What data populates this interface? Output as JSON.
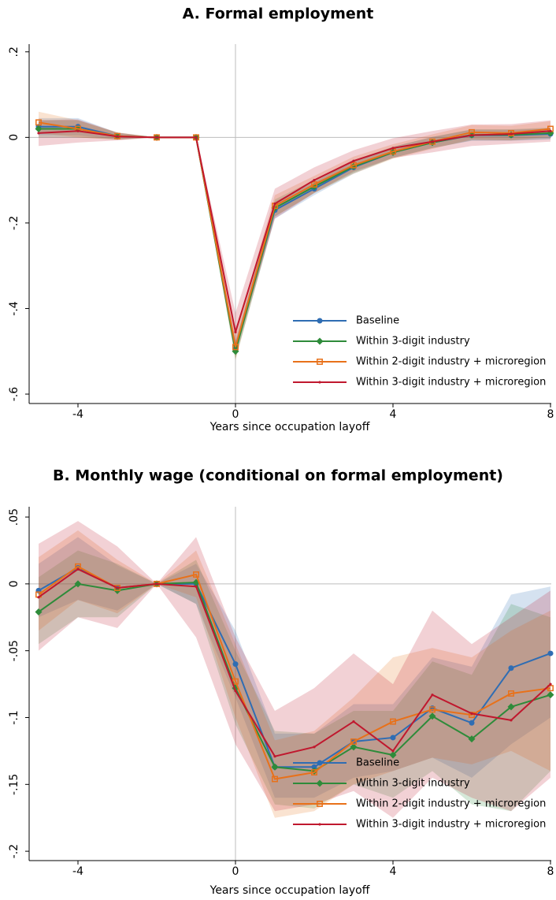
{
  "chart_data": [
    {
      "type": "line",
      "title": "A. Formal employment",
      "x_label": "Years since occupation layoff",
      "x": [
        -5,
        -4,
        -3,
        -2,
        -1,
        0,
        1,
        2,
        3,
        4,
        5,
        6,
        7,
        8
      ],
      "xlim": [
        -5.24,
        8.02
      ],
      "xticks": [
        -4,
        0,
        4,
        8
      ],
      "ylim": [
        -0.622,
        0.218
      ],
      "yticks": [
        {
          "value": -0.6,
          "label": "-.6"
        },
        {
          "value": -0.4,
          "label": "-.4"
        },
        {
          "value": -0.2,
          "label": "-.2"
        },
        0,
        {
          "value": 0.2,
          "label": ".2"
        }
      ],
      "legend": "lower right",
      "series": [
        {
          "name": "Baseline",
          "color": "#2f6db3",
          "marker": "circle",
          "values": [
            0.025,
            0.025,
            0.003,
            0,
            0,
            -0.495,
            -0.17,
            -0.12,
            -0.07,
            -0.035,
            -0.012,
            0.005,
            0.005,
            0.008
          ],
          "lower": [
            0.005,
            0.005,
            -0.005,
            0,
            0,
            -0.515,
            -0.19,
            -0.135,
            -0.085,
            -0.048,
            -0.025,
            -0.008,
            -0.008,
            -0.005
          ],
          "upper": [
            0.045,
            0.045,
            0.011,
            0,
            0,
            -0.475,
            -0.15,
            -0.105,
            -0.055,
            -0.022,
            0.001,
            0.018,
            0.018,
            0.021
          ]
        },
        {
          "name": "Within 3-digit industry",
          "color": "#2e8b3a",
          "marker": "diamond",
          "values": [
            0.02,
            0.02,
            0.003,
            0,
            0,
            -0.5,
            -0.165,
            -0.115,
            -0.068,
            -0.035,
            -0.012,
            0.006,
            0.006,
            0.01
          ],
          "lower": [
            0,
            0,
            -0.005,
            0,
            0,
            -0.52,
            -0.185,
            -0.13,
            -0.083,
            -0.048,
            -0.025,
            -0.007,
            -0.007,
            -0.003
          ],
          "upper": [
            0.04,
            0.04,
            0.011,
            0,
            0,
            -0.48,
            -0.145,
            -0.1,
            -0.053,
            -0.022,
            0.001,
            0.019,
            0.019,
            0.023
          ]
        },
        {
          "name": "Within 2-digit industry + microregion",
          "color": "#e8711a",
          "marker": "square",
          "values": [
            0.035,
            0.02,
            0.003,
            0,
            0,
            -0.49,
            -0.16,
            -0.11,
            -0.065,
            -0.033,
            -0.01,
            0.012,
            0.01,
            0.02
          ],
          "lower": [
            0.01,
            0,
            -0.006,
            0,
            0,
            -0.52,
            -0.185,
            -0.13,
            -0.085,
            -0.05,
            -0.027,
            -0.005,
            -0.007,
            0.002
          ],
          "upper": [
            0.06,
            0.04,
            0.012,
            0,
            0,
            -0.46,
            -0.135,
            -0.09,
            -0.045,
            -0.016,
            0.007,
            0.029,
            0.027,
            0.038
          ]
        },
        {
          "name": "Within 3-digit industry + microregion",
          "color": "#c0182e",
          "marker": "dot",
          "values": [
            0.01,
            0.015,
            0.002,
            0,
            0,
            -0.455,
            -0.155,
            -0.1,
            -0.055,
            -0.025,
            -0.01,
            0.005,
            0.008,
            0.015
          ],
          "lower": [
            -0.02,
            -0.012,
            -0.007,
            0,
            0,
            -0.5,
            -0.19,
            -0.13,
            -0.08,
            -0.048,
            -0.035,
            -0.02,
            -0.015,
            -0.01
          ],
          "upper": [
            0.04,
            0.042,
            0.011,
            0,
            0,
            -0.41,
            -0.12,
            -0.07,
            -0.03,
            -0.002,
            0.015,
            0.03,
            0.031,
            0.04
          ]
        }
      ]
    },
    {
      "type": "line",
      "title": "B. Monthly wage (conditional on formal employment)",
      "x_label": "Years since occupation layoff",
      "x": [
        -5,
        -4,
        -3,
        -2,
        -1,
        0,
        1,
        2,
        3,
        4,
        5,
        6,
        7,
        8
      ],
      "xlim": [
        -5.24,
        8.02
      ],
      "xticks": [
        -4,
        0,
        4,
        8
      ],
      "ylim": [
        -0.207,
        0.0577
      ],
      "yticks": [
        {
          "value": -0.2,
          "label": "-.2"
        },
        {
          "value": -0.15,
          "label": "-.15"
        },
        {
          "value": -0.1,
          "label": "-.1"
        },
        {
          "value": -0.05,
          "label": "-.05"
        },
        0,
        {
          "value": 0.05,
          "label": ".05"
        }
      ],
      "legend": "lower right",
      "series": [
        {
          "name": "Baseline",
          "color": "#2f6db3",
          "marker": "circle",
          "values": [
            -0.005,
            0.012,
            -0.003,
            0,
            0,
            -0.06,
            -0.137,
            -0.137,
            -0.118,
            -0.115,
            -0.093,
            -0.104,
            -0.063,
            -0.052
          ],
          "lower": [
            -0.025,
            -0.012,
            -0.02,
            0,
            -0.015,
            -0.085,
            -0.16,
            -0.16,
            -0.145,
            -0.14,
            -0.13,
            -0.145,
            -0.12,
            -0.1
          ],
          "upper": [
            0.015,
            0.035,
            0.014,
            0,
            0.015,
            -0.035,
            -0.112,
            -0.112,
            -0.09,
            -0.09,
            -0.055,
            -0.062,
            -0.008,
            -0.002
          ]
        },
        {
          "name": "Within 3-digit industry",
          "color": "#2e8b3a",
          "marker": "diamond",
          "values": [
            -0.021,
            0,
            -0.005,
            0,
            0.001,
            -0.078,
            -0.137,
            -0.14,
            -0.122,
            -0.128,
            -0.099,
            -0.116,
            -0.092,
            -0.083
          ],
          "lower": [
            -0.045,
            -0.025,
            -0.025,
            0,
            -0.015,
            -0.105,
            -0.165,
            -0.168,
            -0.15,
            -0.16,
            -0.14,
            -0.165,
            -0.17,
            -0.14
          ],
          "upper": [
            0.005,
            0.025,
            0.015,
            0,
            0.018,
            -0.05,
            -0.11,
            -0.112,
            -0.095,
            -0.095,
            -0.058,
            -0.068,
            -0.015,
            -0.025
          ]
        },
        {
          "name": "Within 2-digit industry + microregion",
          "color": "#e8711a",
          "marker": "square",
          "values": [
            -0.008,
            0.013,
            -0.003,
            0,
            0.007,
            -0.073,
            -0.146,
            -0.141,
            -0.118,
            -0.103,
            -0.094,
            -0.098,
            -0.082,
            -0.078
          ],
          "lower": [
            -0.035,
            -0.012,
            -0.022,
            0,
            -0.01,
            -0.1,
            -0.175,
            -0.17,
            -0.15,
            -0.14,
            -0.13,
            -0.135,
            -0.125,
            -0.14
          ],
          "upper": [
            0.02,
            0.04,
            0.018,
            0,
            0.025,
            -0.045,
            -0.117,
            -0.11,
            -0.085,
            -0.055,
            -0.048,
            -0.055,
            -0.035,
            -0.02
          ]
        },
        {
          "name": "Within 3-digit industry + microregion",
          "color": "#c0182e",
          "marker": "dot",
          "values": [
            -0.01,
            0.011,
            -0.003,
            0,
            -0.002,
            -0.08,
            -0.129,
            -0.122,
            -0.103,
            -0.125,
            -0.083,
            -0.097,
            -0.102,
            -0.075
          ],
          "lower": [
            -0.05,
            -0.025,
            -0.033,
            0,
            -0.04,
            -0.12,
            -0.17,
            -0.165,
            -0.155,
            -0.175,
            -0.145,
            -0.16,
            -0.17,
            -0.145
          ],
          "upper": [
            0.03,
            0.047,
            0.028,
            0,
            0.035,
            -0.04,
            -0.095,
            -0.078,
            -0.052,
            -0.075,
            -0.02,
            -0.045,
            -0.025,
            -0.005
          ]
        }
      ]
    }
  ]
}
